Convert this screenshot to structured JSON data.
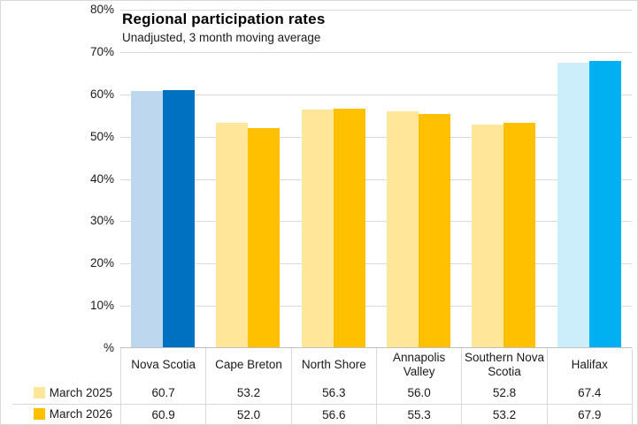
{
  "chart": {
    "title": "Regional participation rates",
    "subtitle": "Unadjusted, 3 month moving average"
  },
  "chart_data": {
    "type": "bar",
    "title": "Regional participation rates",
    "subtitle": "Unadjusted, 3 month moving average",
    "categories": [
      "Nova Scotia",
      "Cape Breton",
      "North Shore",
      "Annapolis Valley",
      "Southern Nova Scotia",
      "Halifax"
    ],
    "series": [
      {
        "name": "March 2025",
        "values": [
          60.7,
          53.2,
          56.3,
          56.0,
          52.8,
          67.4
        ]
      },
      {
        "name": "March 2026",
        "values": [
          60.9,
          52.0,
          56.6,
          55.3,
          53.2,
          67.9
        ]
      }
    ],
    "ylabel": "%",
    "ylim": [
      0,
      80
    ],
    "y_ticks": [
      80,
      70,
      60,
      50,
      40,
      30,
      20,
      10,
      0
    ],
    "y_tick_labels": [
      "80%",
      "70%",
      "60%",
      "50%",
      "40%",
      "30%",
      "20%",
      "10%",
      "%"
    ],
    "grid": "horizontal",
    "legend_position": "bottom-left-table",
    "value_decimals": 1,
    "bar_colors": [
      [
        "#BDD7EE",
        "#0070C0"
      ],
      [
        "#FFE699",
        "#FFC000"
      ],
      [
        "#FFE699",
        "#FFC000"
      ],
      [
        "#FFE699",
        "#FFC000"
      ],
      [
        "#FFE699",
        "#FFC000"
      ],
      [
        "#CCEEFB",
        "#00B0F0"
      ]
    ],
    "legend_swatch_colors": [
      "#FFE699",
      "#FFC000"
    ]
  },
  "colors": {
    "gridline": "#D9D9D9",
    "axis_line": "#BFBFBF",
    "table_border": "#D9D9D9",
    "title_text": "#000000",
    "body_text": "#1A1A1A",
    "background": "#FFFFFF"
  }
}
